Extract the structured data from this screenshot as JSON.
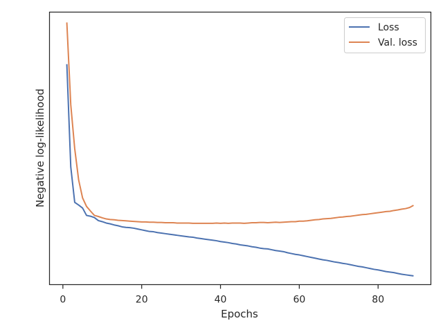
{
  "chart_data": {
    "type": "line",
    "title": "",
    "xlabel": "Epochs",
    "ylabel": "Negative log-likelihood",
    "xlim": [
      -3.4,
      93.4
    ],
    "ylim": [
      0,
      1
    ],
    "xticks": [
      0,
      20,
      40,
      60,
      80
    ],
    "yticks_visible": false,
    "grid": false,
    "legend_position": "top-right",
    "colors": {
      "Loss": "#4c72b0",
      "Val. loss": "#dd8452",
      "axes": "#262626"
    },
    "series": [
      {
        "name": "Loss",
        "x": [
          1,
          2,
          3,
          4,
          5,
          6,
          7,
          8,
          9,
          10,
          11,
          12,
          13,
          14,
          15,
          16,
          17,
          18,
          19,
          20,
          21,
          22,
          23,
          24,
          25,
          26,
          27,
          28,
          29,
          30,
          31,
          32,
          33,
          34,
          35,
          36,
          37,
          38,
          39,
          40,
          41,
          42,
          43,
          44,
          45,
          46,
          47,
          48,
          49,
          50,
          51,
          52,
          53,
          54,
          55,
          56,
          57,
          58,
          59,
          60,
          61,
          62,
          63,
          64,
          65,
          66,
          67,
          68,
          69,
          70,
          71,
          72,
          73,
          74,
          75,
          76,
          77,
          78,
          79,
          80,
          81,
          82,
          83,
          84,
          85,
          86,
          87,
          88,
          89
        ],
        "values": [
          0.809,
          0.432,
          0.302,
          0.292,
          0.281,
          0.254,
          0.251,
          0.246,
          0.235,
          0.231,
          0.226,
          0.223,
          0.219,
          0.216,
          0.212,
          0.21,
          0.209,
          0.207,
          0.204,
          0.201,
          0.198,
          0.195,
          0.194,
          0.191,
          0.189,
          0.187,
          0.185,
          0.183,
          0.181,
          0.179,
          0.177,
          0.175,
          0.174,
          0.171,
          0.169,
          0.167,
          0.165,
          0.163,
          0.161,
          0.158,
          0.156,
          0.154,
          0.151,
          0.149,
          0.146,
          0.144,
          0.142,
          0.139,
          0.137,
          0.134,
          0.132,
          0.131,
          0.128,
          0.125,
          0.123,
          0.121,
          0.117,
          0.114,
          0.111,
          0.109,
          0.106,
          0.103,
          0.1,
          0.097,
          0.094,
          0.091,
          0.089,
          0.086,
          0.083,
          0.081,
          0.078,
          0.076,
          0.073,
          0.07,
          0.067,
          0.065,
          0.062,
          0.059,
          0.056,
          0.054,
          0.051,
          0.048,
          0.046,
          0.044,
          0.041,
          0.038,
          0.036,
          0.034,
          0.032
        ]
      },
      {
        "name": "Val. loss",
        "x": [
          1,
          2,
          3,
          4,
          5,
          6,
          7,
          8,
          9,
          10,
          11,
          12,
          13,
          14,
          15,
          16,
          17,
          18,
          19,
          20,
          21,
          22,
          23,
          24,
          25,
          26,
          27,
          28,
          29,
          30,
          31,
          32,
          33,
          34,
          35,
          36,
          37,
          38,
          39,
          40,
          41,
          42,
          43,
          44,
          45,
          46,
          47,
          48,
          49,
          50,
          51,
          52,
          53,
          54,
          55,
          56,
          57,
          58,
          59,
          60,
          61,
          62,
          63,
          64,
          65,
          66,
          67,
          68,
          69,
          70,
          71,
          72,
          73,
          74,
          75,
          76,
          77,
          78,
          79,
          80,
          81,
          82,
          83,
          84,
          85,
          86,
          87,
          88,
          89
        ],
        "values": [
          0.962,
          0.66,
          0.499,
          0.384,
          0.318,
          0.287,
          0.27,
          0.254,
          0.25,
          0.245,
          0.241,
          0.239,
          0.238,
          0.236,
          0.235,
          0.234,
          0.233,
          0.232,
          0.231,
          0.23,
          0.23,
          0.229,
          0.229,
          0.228,
          0.228,
          0.227,
          0.227,
          0.227,
          0.226,
          0.226,
          0.226,
          0.226,
          0.225,
          0.225,
          0.225,
          0.225,
          0.225,
          0.225,
          0.226,
          0.225,
          0.226,
          0.225,
          0.226,
          0.226,
          0.226,
          0.225,
          0.226,
          0.227,
          0.227,
          0.228,
          0.228,
          0.227,
          0.228,
          0.229,
          0.228,
          0.229,
          0.23,
          0.231,
          0.231,
          0.233,
          0.233,
          0.234,
          0.236,
          0.238,
          0.239,
          0.241,
          0.242,
          0.243,
          0.245,
          0.247,
          0.248,
          0.25,
          0.251,
          0.253,
          0.255,
          0.257,
          0.258,
          0.26,
          0.262,
          0.264,
          0.266,
          0.268,
          0.269,
          0.272,
          0.274,
          0.277,
          0.279,
          0.283,
          0.291
        ]
      }
    ]
  }
}
